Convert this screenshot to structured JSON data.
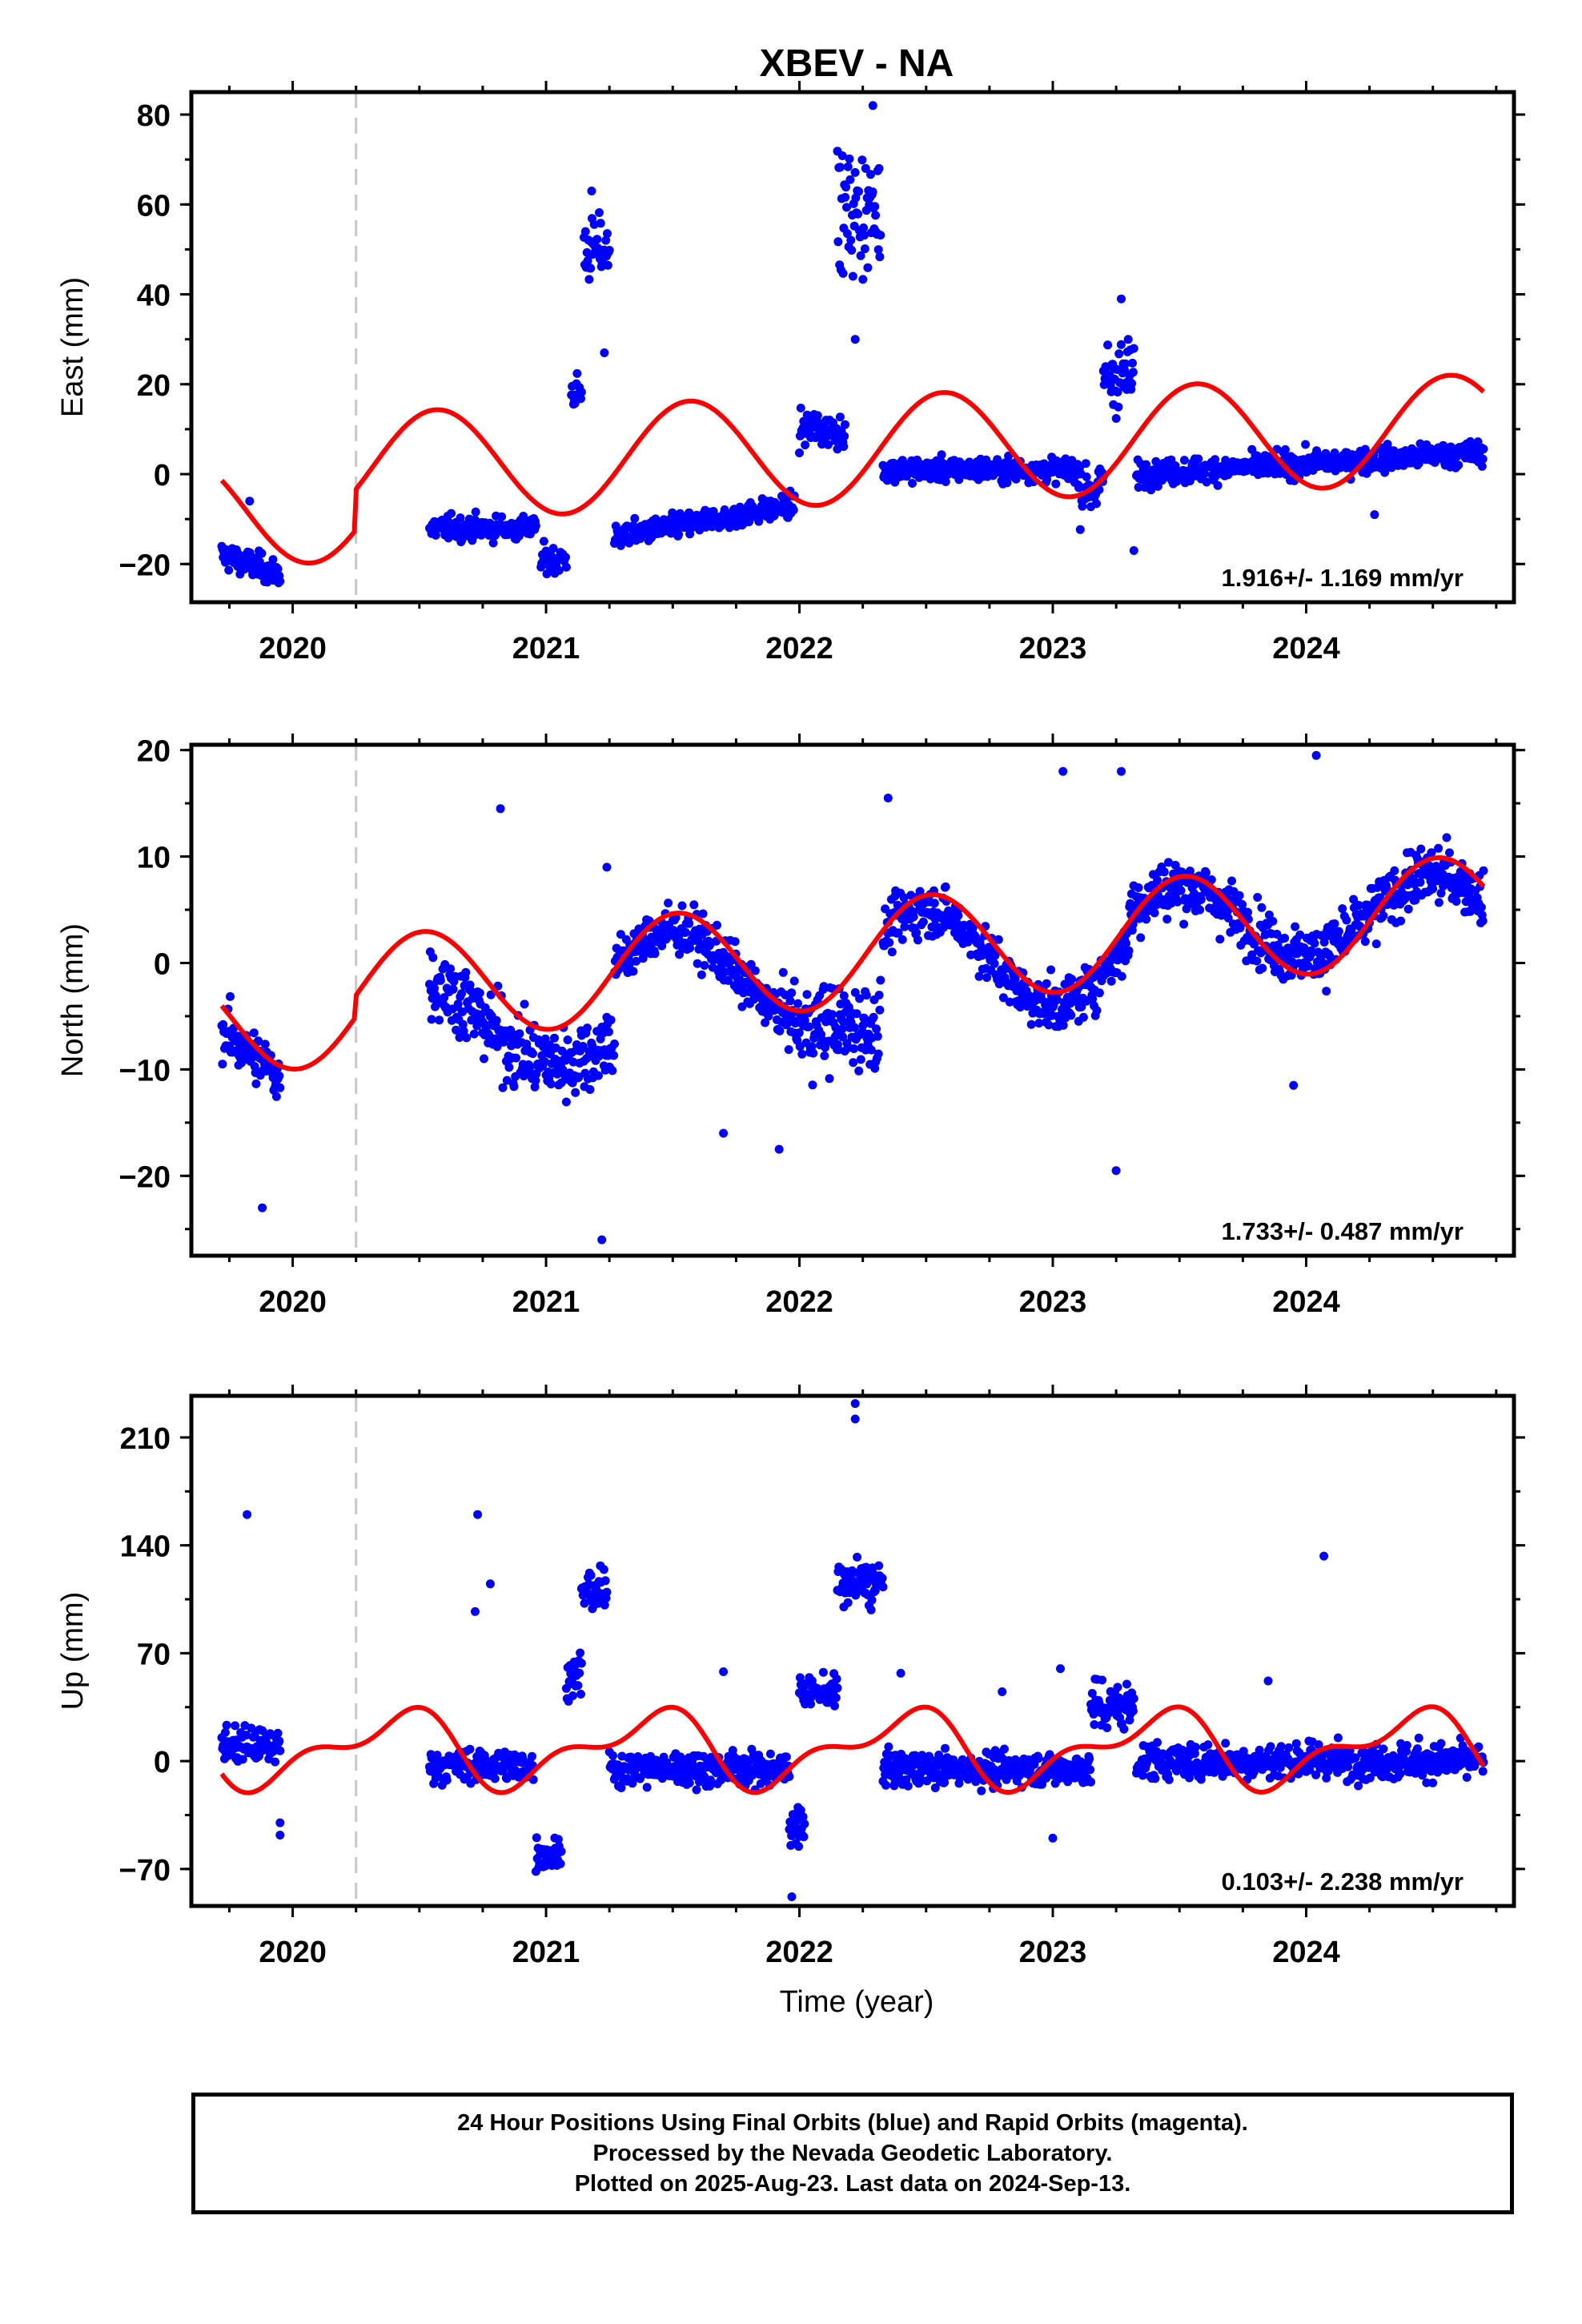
{
  "title": "XBEV - NA",
  "xlabel": "Time (year)",
  "footer": {
    "line1": "24 Hour Positions Using Final Orbits (blue) and Rapid Orbits (magenta).",
    "line2": "Processed by the Nevada Geodetic Laboratory.",
    "line3": "Plotted on 2025-Aug-23. Last data on 2024-Sep-13."
  },
  "colors": {
    "final_orbits": "#0000ff",
    "model_fit": "#ff0000",
    "equipment_change_line": "#c8c8c8"
  },
  "chart_data": [
    {
      "type": "scatter",
      "component": "east",
      "ylabel": "East (mm)",
      "xlim": [
        2019.6,
        2024.82
      ],
      "ylim": [
        -28.5,
        85
      ],
      "xticks": [
        2020,
        2021,
        2022,
        2023,
        2024
      ],
      "yticks": [
        -20,
        0,
        20,
        40,
        60,
        80
      ],
      "rate_label": "1.916+/- 1.169 mm/yr",
      "equipment_change_x": 2020.25,
      "data_segments": [
        {
          "x0": 2019.72,
          "x1": 2019.95,
          "base": -18,
          "slope": -18,
          "amp": 0,
          "noise": 2.5
        },
        {
          "x0": 2020.54,
          "x1": 2020.96,
          "base": -12,
          "slope": 0,
          "amp": 0,
          "noise": 2.2
        },
        {
          "x0": 2020.98,
          "x1": 2021.08,
          "base": -19,
          "slope": 0,
          "amp": 0,
          "noise": 2.5
        },
        {
          "x0": 2021.1,
          "x1": 2021.14,
          "base": 18,
          "slope": 0,
          "amp": 0,
          "noise": 3.5
        },
        {
          "x0": 2021.15,
          "x1": 2021.25,
          "base": 50,
          "slope": 0,
          "amp": 0,
          "noise": 6
        },
        {
          "x0": 2021.27,
          "x1": 2021.98,
          "base": -14,
          "slope": 10,
          "amp": 0,
          "noise": 2.2
        },
        {
          "x0": 2022.0,
          "x1": 2022.18,
          "base": 10,
          "slope": 0,
          "amp": 0,
          "noise": 3.5
        },
        {
          "x0": 2022.15,
          "x1": 2022.32,
          "base": 58,
          "slope": 0,
          "amp": 0,
          "noise": 11
        },
        {
          "x0": 2022.33,
          "x1": 2023.1,
          "base": 1,
          "slope": 0,
          "amp": 0,
          "noise": 2.2
        },
        {
          "x0": 2023.1,
          "x1": 2023.2,
          "base": -3,
          "slope": 0,
          "amp": 0,
          "noise": 5
        },
        {
          "x0": 2023.2,
          "x1": 2023.32,
          "base": 22,
          "slope": 0,
          "amp": 0,
          "noise": 7
        },
        {
          "x0": 2023.33,
          "x1": 2024.7,
          "base": 0,
          "slope": 3.5,
          "amp": 0,
          "noise": 2.3
        }
      ],
      "outliers": [
        [
          2019.83,
          -6
        ],
        [
          2021.18,
          63
        ],
        [
          2021.23,
          27
        ],
        [
          2022.29,
          82
        ],
        [
          2022.22,
          30
        ],
        [
          2023.32,
          -17
        ],
        [
          2023.27,
          39
        ],
        [
          2024.27,
          -9
        ]
      ],
      "fit": {
        "offset": -4,
        "rate": 1.916,
        "annual_sin": -5,
        "annual_cos": -11,
        "semi_sin": 0,
        "semi_cos": 0,
        "jump_x": 2020.25,
        "jump": 9
      }
    },
    {
      "type": "scatter",
      "component": "north",
      "ylabel": "North (mm)",
      "xlim": [
        2019.6,
        2024.82
      ],
      "ylim": [
        -27.5,
        20.5
      ],
      "xticks": [
        2020,
        2021,
        2022,
        2023,
        2024
      ],
      "yticks": [
        -20,
        -10,
        0,
        10,
        20
      ],
      "rate_label": "1.733+/- 0.487 mm/yr",
      "equipment_change_x": 2020.25,
      "data_segments": [
        {
          "x0": 2019.72,
          "x1": 2019.95,
          "base": -6.5,
          "slope": -18,
          "amp": 0,
          "noise": 2.2
        },
        {
          "x0": 2020.54,
          "x1": 2021.27,
          "base": -4.5,
          "slope": -4,
          "amp": 3,
          "noise": 3
        },
        {
          "x0": 2021.27,
          "x1": 2021.98,
          "base": -1,
          "slope": 0,
          "amp": 4,
          "noise": 2
        },
        {
          "x0": 2021.98,
          "x1": 2022.32,
          "base": -6,
          "slope": 0,
          "amp": 0,
          "noise": 3.5
        },
        {
          "x0": 2022.33,
          "x1": 2023.3,
          "base": 0.5,
          "slope": 0,
          "amp": 4.5,
          "noise": 2
        },
        {
          "x0": 2023.3,
          "x1": 2024.7,
          "base": 3.5,
          "slope": 1,
          "amp": 3.5,
          "noise": 2.3
        }
      ],
      "outliers": [
        [
          2020.82,
          14.5
        ],
        [
          2019.88,
          -23
        ],
        [
          2021.22,
          -26
        ],
        [
          2021.24,
          9
        ],
        [
          2022.35,
          15.5
        ],
        [
          2023.04,
          18
        ],
        [
          2023.27,
          18
        ],
        [
          2023.25,
          -19.5
        ],
        [
          2024.04,
          19.5
        ],
        [
          2023.95,
          -11.5
        ],
        [
          2021.92,
          -17.5
        ],
        [
          2021.7,
          -16
        ]
      ],
      "fit": {
        "offset": -1.5,
        "rate": 1.733,
        "annual_sin": -0.5,
        "annual_cos": -5,
        "semi_sin": 0,
        "semi_cos": 0,
        "jump_x": 2020.25,
        "jump": 2
      }
    },
    {
      "type": "scatter",
      "component": "up",
      "ylabel": "Up (mm)",
      "xlim": [
        2019.6,
        2024.82
      ],
      "ylim": [
        -94,
        237
      ],
      "xticks": [
        2020,
        2021,
        2022,
        2023,
        2024
      ],
      "yticks": [
        -70,
        0,
        70,
        140,
        210
      ],
      "rate_label": "0.103+/- 2.238 mm/yr",
      "equipment_change_x": 2020.25,
      "data_segments": [
        {
          "x0": 2019.72,
          "x1": 2019.95,
          "base": 10,
          "slope": 0,
          "amp": 0,
          "noise": 10
        },
        {
          "x0": 2020.54,
          "x1": 2020.95,
          "base": -3,
          "slope": 0,
          "amp": 0,
          "noise": 9
        },
        {
          "x0": 2020.96,
          "x1": 2021.06,
          "base": -60,
          "slope": 0,
          "amp": 0,
          "noise": 9
        },
        {
          "x0": 2021.08,
          "x1": 2021.14,
          "base": 55,
          "slope": 0,
          "amp": 0,
          "noise": 12
        },
        {
          "x0": 2021.14,
          "x1": 2021.24,
          "base": 110,
          "slope": 0,
          "amp": 0,
          "noise": 12
        },
        {
          "x0": 2021.25,
          "x1": 2021.96,
          "base": -5,
          "slope": 0,
          "amp": 0,
          "noise": 9
        },
        {
          "x0": 2021.96,
          "x1": 2022.02,
          "base": -40,
          "slope": 0,
          "amp": 0,
          "noise": 12
        },
        {
          "x0": 2022.0,
          "x1": 2022.15,
          "base": 45,
          "slope": 0,
          "amp": 0,
          "noise": 8
        },
        {
          "x0": 2022.15,
          "x1": 2022.33,
          "base": 115,
          "slope": 0,
          "amp": 0,
          "noise": 13
        },
        {
          "x0": 2022.33,
          "x1": 2023.15,
          "base": -5,
          "slope": 0,
          "amp": 0,
          "noise": 9
        },
        {
          "x0": 2023.15,
          "x1": 2023.32,
          "base": 35,
          "slope": 0,
          "amp": 0,
          "noise": 15
        },
        {
          "x0": 2023.33,
          "x1": 2024.7,
          "base": 0,
          "slope": 0,
          "amp": 0,
          "noise": 10
        }
      ],
      "outliers": [
        [
          2019.82,
          160
        ],
        [
          2020.73,
          160
        ],
        [
          2020.78,
          115
        ],
        [
          2020.72,
          97
        ],
        [
          2019.95,
          -40
        ],
        [
          2019.95,
          -48
        ],
        [
          2022.22,
          222
        ],
        [
          2022.22,
          232
        ],
        [
          2021.97,
          -88
        ],
        [
          2024.07,
          133
        ],
        [
          2023.0,
          -50
        ],
        [
          2023.03,
          60
        ],
        [
          2021.7,
          58
        ],
        [
          2022.4,
          57
        ],
        [
          2022.8,
          45
        ],
        [
          2023.85,
          52
        ]
      ],
      "fit": {
        "offset": 8,
        "rate": 0.103,
        "annual_sin": 12,
        "annual_cos": -17,
        "semi_sin": 5,
        "semi_cos": 10,
        "jump_x": 2020.25,
        "jump": 0
      }
    }
  ]
}
